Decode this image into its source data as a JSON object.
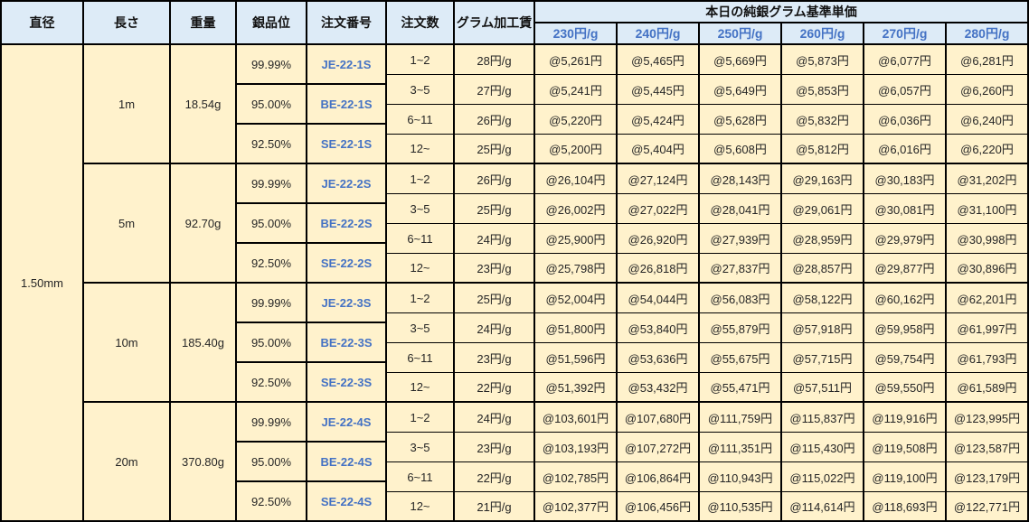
{
  "header": {
    "diameter": "直径",
    "length": "長さ",
    "weight": "重量",
    "purity": "銀品位",
    "order_no": "注文番号",
    "order_qty": "注文数",
    "gram_fee": "グラム加工賃",
    "price_group": "本日の純銀グラム基準単価",
    "price_cols": [
      "230円/g",
      "240円/g",
      "250円/g",
      "260円/g",
      "270円/g",
      "280円/g"
    ]
  },
  "diameter": "1.50mm",
  "blocks": [
    {
      "length": "1m",
      "weight": "18.54g",
      "purities": [
        {
          "purity": "99.99%",
          "order_no": "JE-22-1S"
        },
        {
          "purity": "95.00%",
          "order_no": "BE-22-1S"
        },
        {
          "purity": "92.50%",
          "order_no": "SE-22-1S"
        }
      ],
      "rows": [
        {
          "qty": "1~2",
          "fee": "28円/g",
          "prices": [
            "@5,261円",
            "@5,465円",
            "@5,669円",
            "@5,873円",
            "@6,077円",
            "@6,281円"
          ]
        },
        {
          "qty": "3~5",
          "fee": "27円/g",
          "prices": [
            "@5,241円",
            "@5,445円",
            "@5,649円",
            "@5,853円",
            "@6,057円",
            "@6,260円"
          ]
        },
        {
          "qty": "6~11",
          "fee": "26円/g",
          "prices": [
            "@5,220円",
            "@5,424円",
            "@5,628円",
            "@5,832円",
            "@6,036円",
            "@6,240円"
          ]
        },
        {
          "qty": "12~",
          "fee": "25円/g",
          "prices": [
            "@5,200円",
            "@5,404円",
            "@5,608円",
            "@5,812円",
            "@6,016円",
            "@6,220円"
          ]
        }
      ]
    },
    {
      "length": "5m",
      "weight": "92.70g",
      "purities": [
        {
          "purity": "99.99%",
          "order_no": "JE-22-2S"
        },
        {
          "purity": "95.00%",
          "order_no": "BE-22-2S"
        },
        {
          "purity": "92.50%",
          "order_no": "SE-22-2S"
        }
      ],
      "rows": [
        {
          "qty": "1~2",
          "fee": "26円/g",
          "prices": [
            "@26,104円",
            "@27,124円",
            "@28,143円",
            "@29,163円",
            "@30,183円",
            "@31,202円"
          ]
        },
        {
          "qty": "3~5",
          "fee": "25円/g",
          "prices": [
            "@26,002円",
            "@27,022円",
            "@28,041円",
            "@29,061円",
            "@30,081円",
            "@31,100円"
          ]
        },
        {
          "qty": "6~11",
          "fee": "24円/g",
          "prices": [
            "@25,900円",
            "@26,920円",
            "@27,939円",
            "@28,959円",
            "@29,979円",
            "@30,998円"
          ]
        },
        {
          "qty": "12~",
          "fee": "23円/g",
          "prices": [
            "@25,798円",
            "@26,818円",
            "@27,837円",
            "@28,857円",
            "@29,877円",
            "@30,896円"
          ]
        }
      ]
    },
    {
      "length": "10m",
      "weight": "185.40g",
      "purities": [
        {
          "purity": "99.99%",
          "order_no": "JE-22-3S"
        },
        {
          "purity": "95.00%",
          "order_no": "BE-22-3S"
        },
        {
          "purity": "92.50%",
          "order_no": "SE-22-3S"
        }
      ],
      "rows": [
        {
          "qty": "1~2",
          "fee": "25円/g",
          "prices": [
            "@52,004円",
            "@54,044円",
            "@56,083円",
            "@58,122円",
            "@60,162円",
            "@62,201円"
          ]
        },
        {
          "qty": "3~5",
          "fee": "24円/g",
          "prices": [
            "@51,800円",
            "@53,840円",
            "@55,879円",
            "@57,918円",
            "@59,958円",
            "@61,997円"
          ]
        },
        {
          "qty": "6~11",
          "fee": "23円/g",
          "prices": [
            "@51,596円",
            "@53,636円",
            "@55,675円",
            "@57,715円",
            "@59,754円",
            "@61,793円"
          ]
        },
        {
          "qty": "12~",
          "fee": "22円/g",
          "prices": [
            "@51,392円",
            "@53,432円",
            "@55,471円",
            "@57,511円",
            "@59,550円",
            "@61,589円"
          ]
        }
      ]
    },
    {
      "length": "20m",
      "weight": "370.80g",
      "purities": [
        {
          "purity": "99.99%",
          "order_no": "JE-22-4S"
        },
        {
          "purity": "95.00%",
          "order_no": "BE-22-4S"
        },
        {
          "purity": "92.50%",
          "order_no": "SE-22-4S"
        }
      ],
      "rows": [
        {
          "qty": "1~2",
          "fee": "24円/g",
          "prices": [
            "@103,601円",
            "@107,680円",
            "@111,759円",
            "@115,837円",
            "@119,916円",
            "@123,995円"
          ]
        },
        {
          "qty": "3~5",
          "fee": "23円/g",
          "prices": [
            "@103,193円",
            "@107,272円",
            "@111,351円",
            "@115,430円",
            "@119,508円",
            "@123,587円"
          ]
        },
        {
          "qty": "6~11",
          "fee": "22円/g",
          "prices": [
            "@102,785円",
            "@106,864円",
            "@110,943円",
            "@115,022円",
            "@119,100円",
            "@123,179円"
          ]
        },
        {
          "qty": "12~",
          "fee": "21円/g",
          "prices": [
            "@102,377円",
            "@106,456円",
            "@110,535円",
            "@114,614円",
            "@118,693円",
            "@122,771円"
          ]
        }
      ]
    }
  ],
  "colors": {
    "header_bg": "#DDEBF7",
    "cell_bg": "#FFF2CC",
    "accent_blue": "#4472C4",
    "border": "#000000"
  }
}
